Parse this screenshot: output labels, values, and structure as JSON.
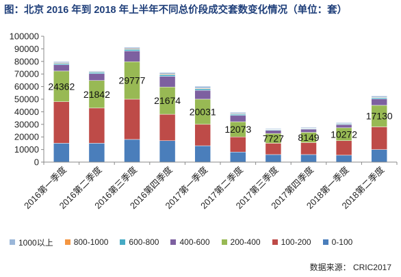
{
  "title": "图：北京 2016 年到 2018 年上半年不同总价段成交套数变化情况（单位：套）",
  "source": "数据来源： CRIC2017",
  "colors": {
    "0-100": "#4a7ebb",
    "100-200": "#be4b48",
    "200-400": "#98b954",
    "400-600": "#7d60a0",
    "600-800": "#46aac4",
    "800-1000": "#f49642",
    "1000以上": "#9bb7d9",
    "axis": "#888888",
    "grid": "#d9d9d9"
  },
  "legend": [
    "1000以上",
    "800-1000",
    "600-800",
    "400-600",
    "200-400",
    "100-200",
    "0-100"
  ],
  "chart_data": {
    "type": "bar",
    "stacked": true,
    "categories": [
      "2016第一季度",
      "2016第二季度",
      "2016第三季度",
      "2016第四季度",
      "2017第一季度",
      "2017第二季度",
      "2017第三季度",
      "2017第四季度",
      "2018第一季度",
      "2018第二季度"
    ],
    "series": [
      {
        "name": "0-100",
        "values": [
          15000,
          15000,
          18000,
          17000,
          13000,
          8000,
          6000,
          6000,
          5500,
          10000
        ]
      },
      {
        "name": "100-200",
        "values": [
          33000,
          28000,
          32000,
          21000,
          17000,
          12000,
          9000,
          9500,
          11500,
          18000
        ]
      },
      {
        "name": "200-400",
        "values": [
          24362,
          21842,
          29777,
          21674,
          20031,
          12073,
          7727,
          8149,
          10272,
          17130
        ]
      },
      {
        "name": "400-600",
        "values": [
          5000,
          5500,
          8500,
          8500,
          7000,
          5000,
          2500,
          2500,
          2500,
          5000
        ]
      },
      {
        "name": "600-800",
        "values": [
          1000,
          1000,
          1300,
          1300,
          1200,
          1000,
          500,
          500,
          600,
          1000
        ]
      },
      {
        "name": "800-1000",
        "values": [
          500,
          400,
          500,
          500,
          500,
          400,
          300,
          300,
          300,
          400
        ]
      },
      {
        "name": "1000以上",
        "values": [
          1000,
          700,
          1100,
          1200,
          1500,
          1000,
          600,
          700,
          700,
          1000
        ]
      }
    ],
    "data_labels": {
      "series": "200-400",
      "values": [
        "24362",
        "21842",
        "29777",
        "21674",
        "20031",
        "12073",
        "7727",
        "8149",
        "10272",
        "17130"
      ]
    },
    "yticks": [
      "0",
      "10000",
      "20000",
      "30000",
      "40000",
      "50000",
      "60000",
      "70000",
      "80000",
      "90000",
      "100000"
    ],
    "ylim": [
      0,
      100000
    ],
    "grid": false,
    "legend_position": "bottom"
  }
}
